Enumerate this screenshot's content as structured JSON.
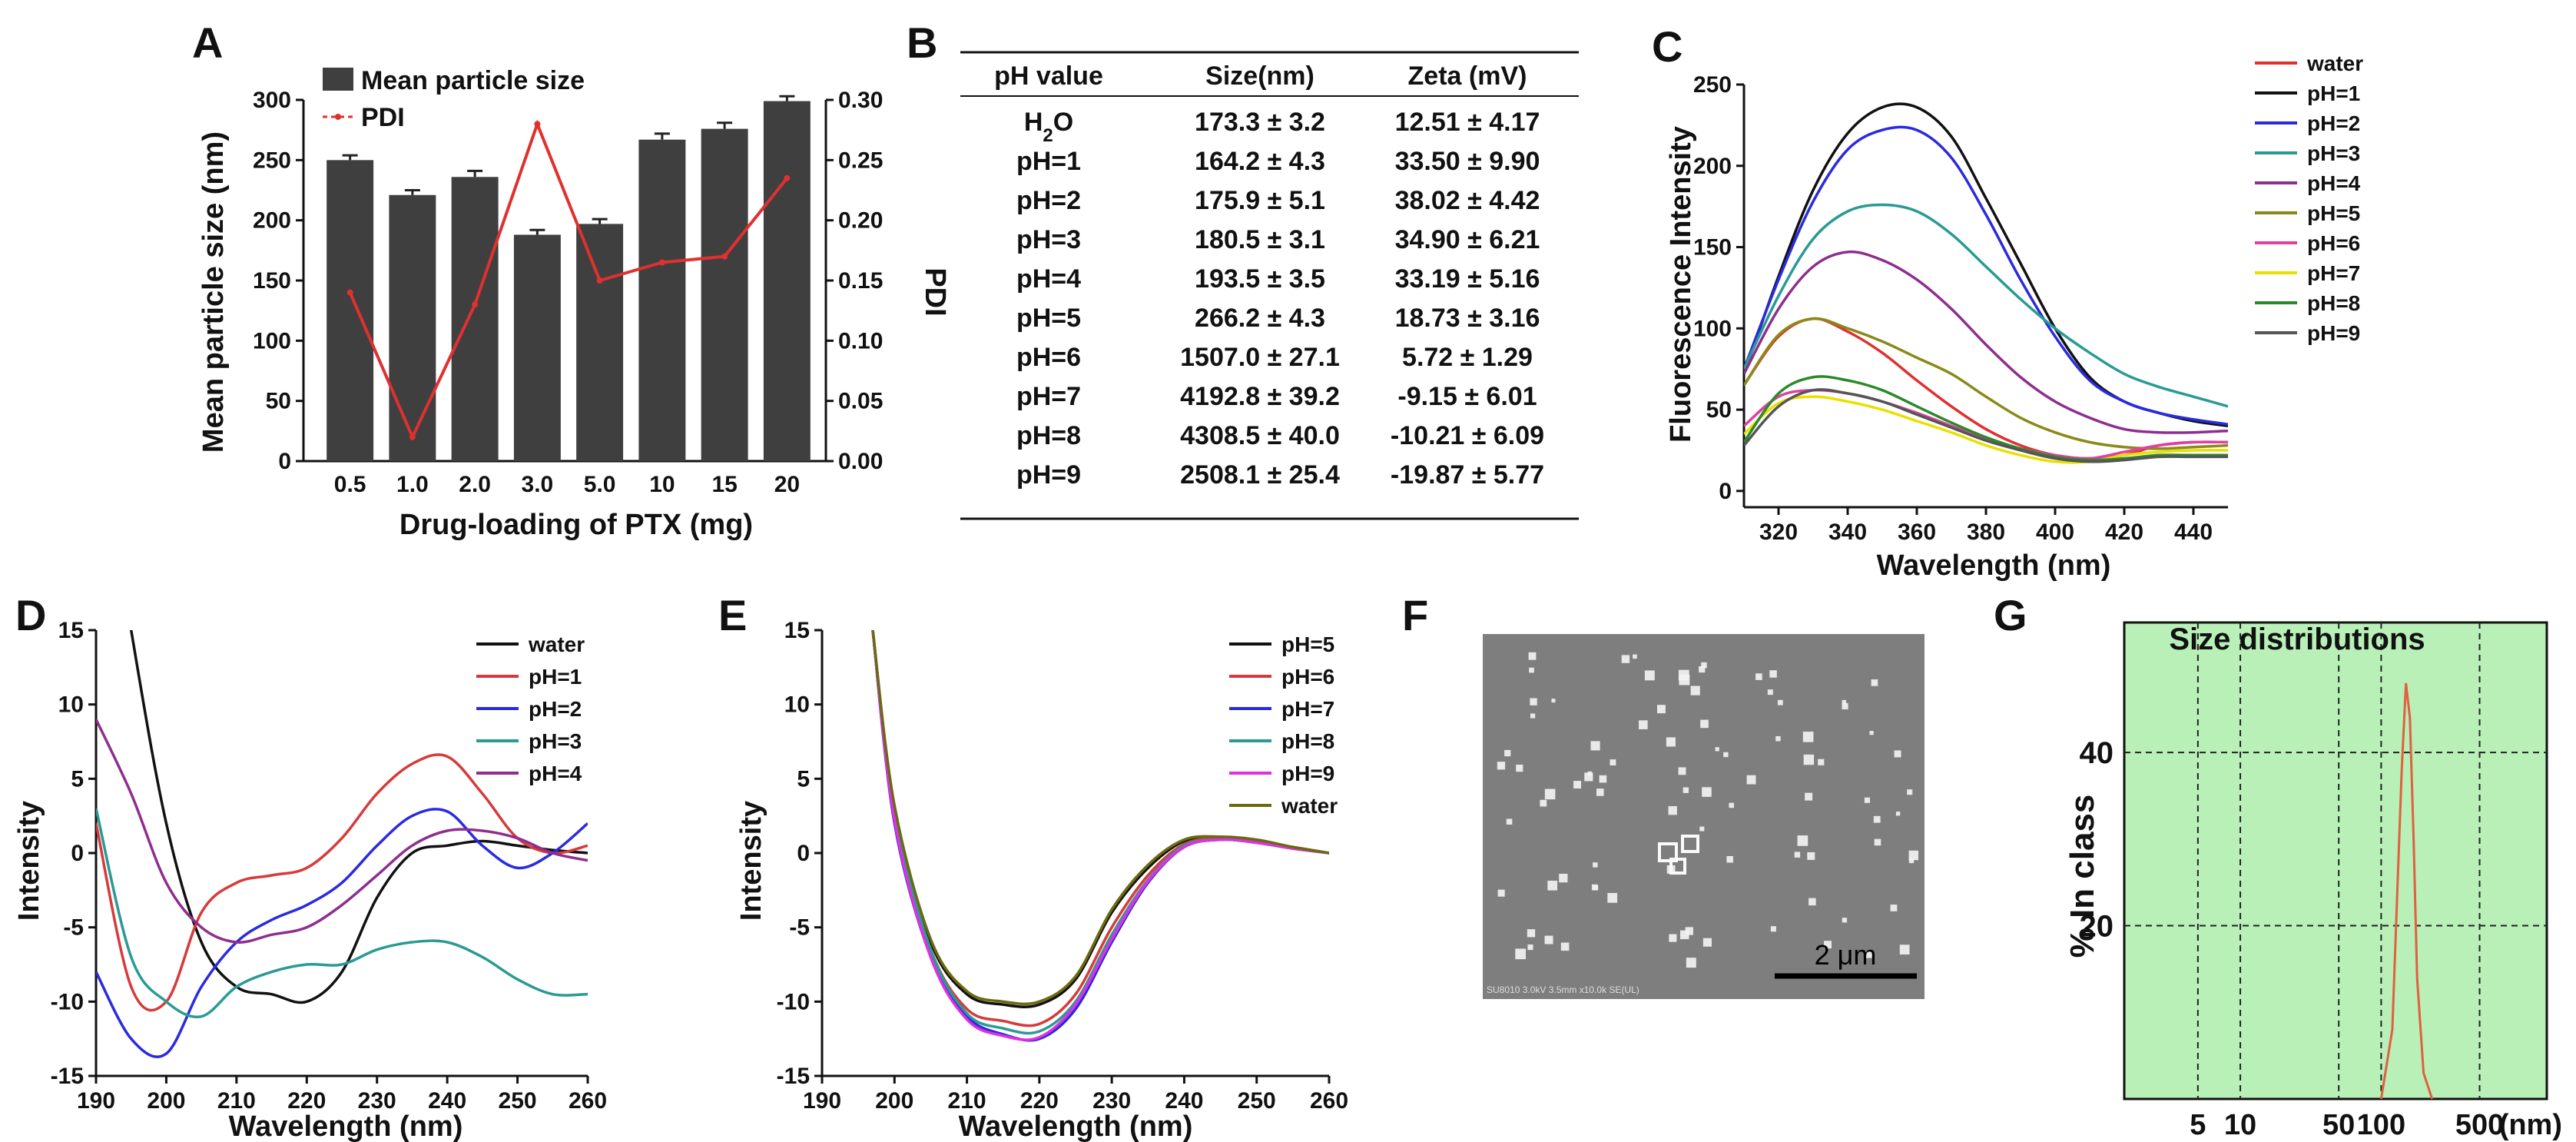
{
  "panels": [
    {
      "id": "A",
      "type": "bar",
      "categories": [
        "0.5",
        "1.0",
        "2.0",
        "3.0",
        "5.0",
        "10",
        "15",
        "20"
      ],
      "series": [
        {
          "name": "Mean particle size",
          "axis": "left",
          "values": [
            250,
            221,
            236,
            188,
            197,
            267,
            276,
            299
          ],
          "errors": [
            4,
            4,
            5,
            4,
            4,
            5,
            5,
            4
          ]
        },
        {
          "name": "PDI",
          "axis": "right",
          "values": [
            0.14,
            0.02,
            0.13,
            0.28,
            0.15,
            0.165,
            0.17,
            0.235
          ]
        }
      ],
      "xlabel": "Drug-loading of PTX (mg)",
      "ylabel": "Mean particle size (nm)",
      "y2label": "PDI",
      "ylim": [
        0,
        300
      ],
      "y2lim": [
        0,
        0.3
      ],
      "yticks": [
        "0",
        "50",
        "100",
        "150",
        "200",
        "250",
        "300"
      ],
      "y2ticks": [
        "0.00",
        "0.05",
        "0.10",
        "0.15",
        "0.20",
        "0.25",
        "0.30"
      ],
      "colors": {
        "bar": "#3f3f3f",
        "pdi": "#e03030"
      }
    },
    {
      "id": "B",
      "type": "table",
      "headers": [
        "pH value",
        "Size(nm)",
        "Zeta (mV)"
      ],
      "rows": [
        [
          "H2O",
          "173.3 ± 3.2",
          "12.51 ± 4.17"
        ],
        [
          "pH=1",
          "164.2 ± 4.3",
          "33.50 ± 9.90"
        ],
        [
          "pH=2",
          "175.9 ± 5.1",
          "38.02 ± 4.42"
        ],
        [
          "pH=3",
          "180.5 ± 3.1",
          "34.90 ± 6.21"
        ],
        [
          "pH=4",
          "193.5 ± 3.5",
          "33.19 ± 5.16"
        ],
        [
          "pH=5",
          "266.2 ± 4.3",
          "18.73 ± 3.16"
        ],
        [
          "pH=6",
          "1507.0 ± 27.1",
          "5.72 ± 1.29"
        ],
        [
          "pH=7",
          "4192.8 ± 39.2",
          "-9.15 ± 6.01"
        ],
        [
          "pH=8",
          "4308.5 ± 40.0",
          "-10.21 ± 6.09"
        ],
        [
          "pH=9",
          "2508.1 ± 25.4",
          "-19.87 ± 5.77"
        ]
      ]
    },
    {
      "id": "C",
      "type": "line",
      "xlabel": "Wavelength (nm)",
      "ylabel": "Fluorescence Intensity",
      "xlim": [
        310,
        450
      ],
      "ylim": [
        -10,
        250
      ],
      "xticks": [
        320,
        340,
        360,
        380,
        400,
        420,
        440
      ],
      "yticks": [
        0,
        50,
        100,
        150,
        200,
        250
      ],
      "x": [
        310,
        320,
        330,
        340,
        350,
        360,
        370,
        380,
        390,
        400,
        410,
        420,
        430,
        440,
        450
      ],
      "series": [
        {
          "name": "water",
          "color": "#e03030",
          "values": [
            65,
            95,
            106,
            98,
            85,
            68,
            52,
            38,
            28,
            22,
            20,
            22,
            28,
            30,
            30
          ]
        },
        {
          "name": "pH=1",
          "color": "#111111",
          "values": [
            72,
            132,
            185,
            220,
            236,
            236,
            218,
            180,
            140,
            100,
            70,
            55,
            48,
            43,
            40
          ]
        },
        {
          "name": "pH=2",
          "color": "#2a2ae0",
          "values": [
            75,
            130,
            178,
            210,
            222,
            222,
            205,
            170,
            130,
            95,
            68,
            55,
            48,
            44,
            41
          ]
        },
        {
          "name": "pH=3",
          "color": "#2a9a95",
          "values": [
            75,
            120,
            155,
            172,
            176,
            172,
            158,
            138,
            118,
            100,
            85,
            72,
            64,
            58,
            52
          ]
        },
        {
          "name": "pH=4",
          "color": "#8e2e8e",
          "values": [
            72,
            112,
            138,
            147,
            142,
            130,
            112,
            90,
            70,
            55,
            45,
            38,
            36,
            36,
            37
          ]
        },
        {
          "name": "pH=5",
          "color": "#8a8a1a",
          "values": [
            65,
            96,
            106,
            100,
            92,
            82,
            72,
            58,
            45,
            36,
            30,
            27,
            26,
            27,
            28
          ]
        },
        {
          "name": "pH=6",
          "color": "#e040a0",
          "values": [
            40,
            58,
            62,
            60,
            55,
            48,
            40,
            32,
            26,
            22,
            20,
            24,
            28,
            30,
            30
          ]
        },
        {
          "name": "pH=7",
          "color": "#e8e000",
          "values": [
            35,
            54,
            58,
            55,
            50,
            43,
            36,
            28,
            22,
            18,
            18,
            22,
            24,
            25,
            25
          ]
        },
        {
          "name": "pH=8",
          "color": "#2a8a2a",
          "values": [
            30,
            60,
            70,
            68,
            62,
            52,
            42,
            33,
            26,
            21,
            19,
            20,
            22,
            22,
            22
          ]
        },
        {
          "name": "pH=9",
          "color": "#555555",
          "values": [
            28,
            52,
            62,
            60,
            55,
            47,
            39,
            31,
            25,
            20,
            18,
            19,
            21,
            21,
            21
          ]
        }
      ]
    },
    {
      "id": "D",
      "type": "line",
      "xlabel": "Wavelength (nm)",
      "ylabel": "Intensity",
      "xlim": [
        190,
        260
      ],
      "ylim": [
        -15,
        15
      ],
      "xticks": [
        190,
        200,
        210,
        220,
        230,
        240,
        250,
        260
      ],
      "yticks": [
        -15,
        -10,
        -5,
        0,
        5,
        10,
        15
      ],
      "x": [
        190,
        195,
        200,
        205,
        210,
        215,
        220,
        225,
        230,
        235,
        240,
        245,
        250,
        255,
        260
      ],
      "series": [
        {
          "name": "water",
          "color": "#111111",
          "values": [
            30,
            15,
            2,
            -6,
            -9,
            -9.5,
            -10,
            -8,
            -3,
            0,
            0.5,
            0.8,
            0.5,
            0.2,
            0
          ]
        },
        {
          "name": "pH=1",
          "color": "#d83a3a",
          "values": [
            2,
            -9,
            -10,
            -4,
            -2,
            -1.5,
            -1,
            1,
            4,
            6,
            6.5,
            4,
            1,
            0,
            0.5
          ]
        },
        {
          "name": "pH=2",
          "color": "#2a2ae0",
          "values": [
            -8,
            -12.5,
            -13.5,
            -9,
            -6,
            -4.5,
            -3.5,
            -2,
            0.5,
            2.5,
            2.8,
            0.5,
            -1,
            0,
            2
          ]
        },
        {
          "name": "pH=3",
          "color": "#2a9a95",
          "values": [
            3,
            -7,
            -10,
            -11,
            -9,
            -8,
            -7.5,
            -7.5,
            -6.5,
            -6,
            -6,
            -7,
            -8.5,
            -9.5,
            -9.5
          ]
        },
        {
          "name": "pH=4",
          "color": "#8e2e8e",
          "values": [
            9,
            4,
            -2,
            -5,
            -6,
            -5.5,
            -5,
            -3.5,
            -1.5,
            0.5,
            1.5,
            1.5,
            1,
            0,
            -0.5
          ]
        }
      ]
    },
    {
      "id": "E",
      "type": "line",
      "xlabel": "Wavelength (nm)",
      "ylabel": "Intensity",
      "xlim": [
        190,
        260
      ],
      "ylim": [
        -15,
        15
      ],
      "xticks": [
        190,
        200,
        210,
        220,
        230,
        240,
        250,
        260
      ],
      "yticks": [
        -15,
        -10,
        -5,
        0,
        5,
        10,
        15
      ],
      "x": [
        197,
        200,
        205,
        210,
        215,
        220,
        225,
        230,
        235,
        240,
        245,
        250,
        255,
        260
      ],
      "series": [
        {
          "name": "pH=5",
          "color": "#111111",
          "values": [
            15,
            3,
            -6,
            -9.5,
            -10.2,
            -10.2,
            -8.5,
            -4,
            -1,
            0.8,
            1,
            0.8,
            0.4,
            0
          ]
        },
        {
          "name": "pH=6",
          "color": "#d83a3a",
          "values": [
            15,
            2.5,
            -6.5,
            -10.5,
            -11.3,
            -11.5,
            -9.5,
            -5,
            -1.5,
            0.6,
            1,
            0.8,
            0.4,
            0
          ]
        },
        {
          "name": "pH=7",
          "color": "#2a2ae0",
          "values": [
            15,
            2,
            -7,
            -11,
            -12.2,
            -12.5,
            -10.5,
            -6,
            -2,
            0.4,
            0.9,
            0.7,
            0.3,
            0
          ]
        },
        {
          "name": "pH=8",
          "color": "#2a9a95",
          "values": [
            15,
            2.8,
            -6.5,
            -10.8,
            -11.8,
            -12,
            -10,
            -5.5,
            -1.8,
            0.5,
            0.9,
            0.7,
            0.3,
            0
          ]
        },
        {
          "name": "pH=9",
          "color": "#e030e0",
          "values": [
            15,
            2.2,
            -7,
            -11.2,
            -12.3,
            -12.4,
            -10.2,
            -5.8,
            -1.9,
            0.4,
            0.9,
            0.7,
            0.3,
            0
          ]
        },
        {
          "name": "water",
          "color": "#6a6a10",
          "values": [
            15,
            3.2,
            -5.8,
            -9.3,
            -10,
            -10,
            -8.3,
            -3.8,
            -0.8,
            0.9,
            1.1,
            0.9,
            0.4,
            0
          ]
        }
      ]
    },
    {
      "id": "F",
      "type": "image",
      "scale_label": "2 μm",
      "footer_text": "SU8010 3.0kV 3.5mm x10.0k SE(UL)"
    },
    {
      "id": "G",
      "type": "line",
      "title": "Size distributions",
      "ylabel": "% In class",
      "xunit": "(nm)",
      "xscale": "log",
      "xticks": [
        "5",
        "10",
        "50",
        "100",
        "500"
      ],
      "yticks": [
        "20",
        "40"
      ],
      "ylim": [
        0,
        55
      ],
      "x": [
        100,
        120,
        140,
        150,
        160,
        170,
        180,
        200,
        230
      ],
      "values": [
        0,
        8,
        38,
        48,
        44,
        30,
        14,
        3,
        0
      ],
      "colors": {
        "background": "#b8f0b8",
        "line": "#e06040"
      }
    }
  ]
}
